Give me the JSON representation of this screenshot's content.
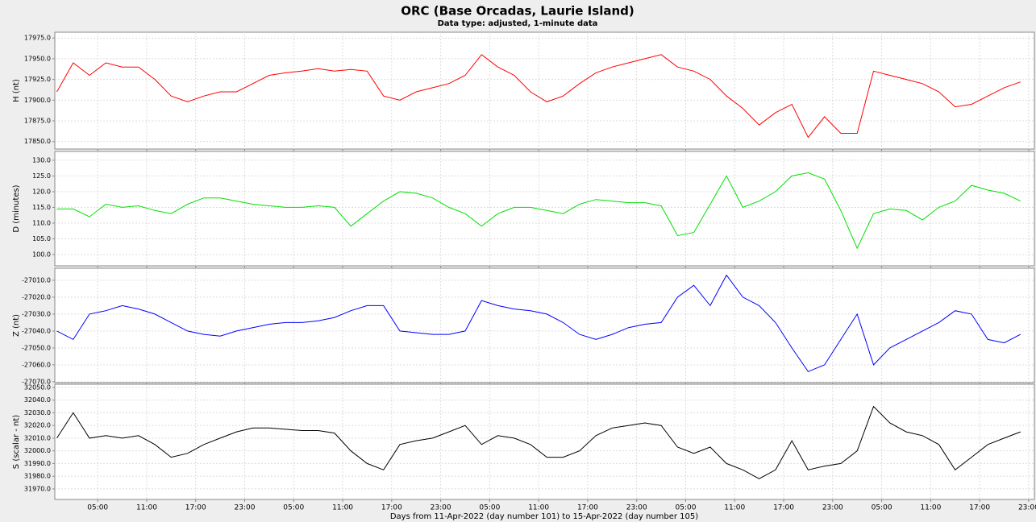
{
  "chart_data": [
    {
      "type": "line",
      "title": "ORC (Base Orcadas, Laurie Island)",
      "subtitle": "Data type: adjusted, 1-minute data",
      "ylabel": "H (nt)",
      "color": "#ff0000",
      "x": [
        0,
        2,
        4,
        6,
        8,
        10,
        12,
        14,
        16,
        18,
        20,
        22,
        24,
        26,
        28,
        30,
        32,
        34,
        36,
        38,
        40,
        42,
        44,
        46,
        48,
        50,
        52,
        54,
        56,
        58,
        60,
        62,
        64,
        66,
        68,
        70,
        72,
        74,
        76,
        78,
        80,
        82,
        84,
        86,
        88,
        90,
        92,
        94,
        96,
        98,
        100,
        102,
        104,
        106,
        108,
        110,
        112,
        114,
        116,
        118
      ],
      "xlim": [
        -0.25,
        119.7
      ],
      "values": [
        17910,
        17945,
        17930,
        17945,
        17940,
        17940,
        17925,
        17905,
        17898,
        17905,
        17910,
        17910,
        17920,
        17930,
        17933,
        17935,
        17938,
        17935,
        17937,
        17935,
        17905,
        17900,
        17910,
        17915,
        17920,
        17930,
        17955,
        17940,
        17930,
        17910,
        17898,
        17905,
        17920,
        17933,
        17940,
        17945,
        17950,
        17955,
        17940,
        17935,
        17925,
        17905,
        17890,
        17870,
        17885,
        17895,
        17855,
        17880,
        17860,
        17860,
        17935,
        17930,
        17925,
        17920,
        17910,
        17892,
        17895,
        17905,
        17915,
        17922
      ],
      "ylim": [
        17841,
        17982
      ],
      "yticks": [
        {
          "value": 17850,
          "label": "17850.0"
        },
        {
          "value": 17875,
          "label": "17875.0"
        },
        {
          "value": 17900,
          "label": "17900.0"
        },
        {
          "value": 17925,
          "label": "17925.0"
        },
        {
          "value": 17950,
          "label": "17950.0"
        },
        {
          "value": 17975,
          "label": "17975.0"
        }
      ],
      "grid": true
    },
    {
      "type": "line",
      "ylabel": "D (minutes)",
      "color": "#00e000",
      "x": [
        0,
        2,
        4,
        6,
        8,
        10,
        12,
        14,
        16,
        18,
        20,
        22,
        24,
        26,
        28,
        30,
        32,
        34,
        36,
        38,
        40,
        42,
        44,
        46,
        48,
        50,
        52,
        54,
        56,
        58,
        60,
        62,
        64,
        66,
        68,
        70,
        72,
        74,
        76,
        78,
        80,
        82,
        84,
        86,
        88,
        90,
        92,
        94,
        96,
        98,
        100,
        102,
        104,
        106,
        108,
        110,
        112,
        114,
        116,
        118
      ],
      "xlim": [
        -0.25,
        119.7
      ],
      "values": [
        114.5,
        114.5,
        112,
        116,
        115,
        115.5,
        114,
        113,
        116,
        118,
        118,
        117,
        116,
        115.5,
        115,
        115,
        115.5,
        115,
        109,
        113,
        117,
        120,
        119.5,
        118,
        115,
        113,
        109,
        113,
        115,
        115,
        114,
        113,
        116,
        117.5,
        117,
        116.5,
        116.5,
        115.5,
        106,
        107,
        116,
        125,
        115,
        117,
        120,
        125,
        126,
        124,
        114,
        102,
        113,
        114.5,
        114,
        111,
        115,
        117,
        122,
        120.5,
        119.5,
        117
      ],
      "ylim": [
        96.4,
        132.8
      ],
      "yticks": [
        {
          "value": 100,
          "label": "100.0"
        },
        {
          "value": 105,
          "label": "105.0"
        },
        {
          "value": 110,
          "label": "110.0"
        },
        {
          "value": 115,
          "label": "115.0"
        },
        {
          "value": 120,
          "label": "120.0"
        },
        {
          "value": 125,
          "label": "125.0"
        },
        {
          "value": 130,
          "label": "130.0"
        }
      ],
      "grid": true
    },
    {
      "type": "line",
      "ylabel": "Z (nt)",
      "color": "#0000ff",
      "x": [
        0,
        2,
        4,
        6,
        8,
        10,
        12,
        14,
        16,
        18,
        20,
        22,
        24,
        26,
        28,
        30,
        32,
        34,
        36,
        38,
        40,
        42,
        44,
        46,
        48,
        50,
        52,
        54,
        56,
        58,
        60,
        62,
        64,
        66,
        68,
        70,
        72,
        74,
        76,
        78,
        80,
        82,
        84,
        86,
        88,
        90,
        92,
        94,
        96,
        98,
        100,
        102,
        104,
        106,
        108,
        110,
        112,
        114,
        116,
        118
      ],
      "xlim": [
        -0.25,
        119.7
      ],
      "values": [
        -27040,
        -27045,
        -27030,
        -27028,
        -27025,
        -27027,
        -27030,
        -27035,
        -27040,
        -27042,
        -27043,
        -27040,
        -27038,
        -27036,
        -27035,
        -27035,
        -27034,
        -27032,
        -27028,
        -27025,
        -27025,
        -27040,
        -27041,
        -27042,
        -27042,
        -27040,
        -27022,
        -27025,
        -27027,
        -27028,
        -27030,
        -27035,
        -27042,
        -27045,
        -27042,
        -27038,
        -27036,
        -27035,
        -27020,
        -27013,
        -27025,
        -27007,
        -27020,
        -27025,
        -27035,
        -27050,
        -27064,
        -27060,
        -27045,
        -27030,
        -27060,
        -27050,
        -27045,
        -27040,
        -27035,
        -27028,
        -27030,
        -27045,
        -27047,
        -27042
      ],
      "ylim": [
        -27070.5,
        -27002.9
      ],
      "yticks": [
        {
          "value": -27070,
          "label": "-27070.0"
        },
        {
          "value": -27060,
          "label": "-27060.0"
        },
        {
          "value": -27050,
          "label": "-27050.0"
        },
        {
          "value": -27040,
          "label": "-27040.0"
        },
        {
          "value": -27030,
          "label": "-27030.0"
        },
        {
          "value": -27020,
          "label": "-27020.0"
        },
        {
          "value": -27010,
          "label": "-27010.0"
        }
      ],
      "grid": true
    },
    {
      "type": "line",
      "ylabel": "S (scalar - nt)",
      "color": "#000000",
      "xlabel": "Days from 11-Apr-2022 (day number 101) to 15-Apr-2022 (day number 105)",
      "x": [
        0,
        2,
        4,
        6,
        8,
        10,
        12,
        14,
        16,
        18,
        20,
        22,
        24,
        26,
        28,
        30,
        32,
        34,
        36,
        38,
        40,
        42,
        44,
        46,
        48,
        50,
        52,
        54,
        56,
        58,
        60,
        62,
        64,
        66,
        68,
        70,
        72,
        74,
        76,
        78,
        80,
        82,
        84,
        86,
        88,
        90,
        92,
        94,
        96,
        98,
        100,
        102,
        104,
        106,
        108,
        110,
        112,
        114,
        116,
        118
      ],
      "xlim": [
        -0.25,
        119.7
      ],
      "values": [
        32010,
        32030,
        32010,
        32012,
        32010,
        32012,
        32005,
        31995,
        31998,
        32005,
        32010,
        32015,
        32018,
        32018,
        32017,
        32016,
        32016,
        32014,
        32000,
        31990,
        31985,
        32005,
        32008,
        32010,
        32015,
        32020,
        32005,
        32012,
        32010,
        32005,
        31995,
        31995,
        32000,
        32012,
        32018,
        32020,
        32022,
        32020,
        32003,
        31998,
        32003,
        31990,
        31985,
        31978,
        31985,
        32008,
        31985,
        31988,
        31990,
        32000,
        32035,
        32022,
        32015,
        32012,
        32005,
        31985,
        31995,
        32005,
        32010,
        32015
      ],
      "ylim": [
        31961.7,
        32052.5
      ],
      "yticks": [
        {
          "value": 31970,
          "label": "31970.0"
        },
        {
          "value": 31980,
          "label": "31980.0"
        },
        {
          "value": 31990,
          "label": "31990.0"
        },
        {
          "value": 32000,
          "label": "32000.0"
        },
        {
          "value": 32010,
          "label": "32010.0"
        },
        {
          "value": 32020,
          "label": "32020.0"
        },
        {
          "value": 32030,
          "label": "32030.0"
        },
        {
          "value": 32040,
          "label": "32040.0"
        },
        {
          "value": 32050,
          "label": "32050.0"
        }
      ],
      "xticks": [
        {
          "value": 5,
          "label": "05:00"
        },
        {
          "value": 11,
          "label": "11:00"
        },
        {
          "value": 17,
          "label": "17:00"
        },
        {
          "value": 23,
          "label": "23:00"
        },
        {
          "value": 29,
          "label": "05:00"
        },
        {
          "value": 35,
          "label": "11:00"
        },
        {
          "value": 41,
          "label": "17:00"
        },
        {
          "value": 47,
          "label": "23:00"
        },
        {
          "value": 53,
          "label": "05:00"
        },
        {
          "value": 59,
          "label": "11:00"
        },
        {
          "value": 65,
          "label": "17:00"
        },
        {
          "value": 71,
          "label": "23:00"
        },
        {
          "value": 77,
          "label": "05:00"
        },
        {
          "value": 83,
          "label": "11:00"
        },
        {
          "value": 89,
          "label": "17:00"
        },
        {
          "value": 95,
          "label": "23:00"
        },
        {
          "value": 101,
          "label": "05:00"
        },
        {
          "value": 107,
          "label": "11:00"
        },
        {
          "value": 113,
          "label": "17:00"
        },
        {
          "value": 119,
          "label": "23:00"
        }
      ],
      "grid": true
    }
  ]
}
